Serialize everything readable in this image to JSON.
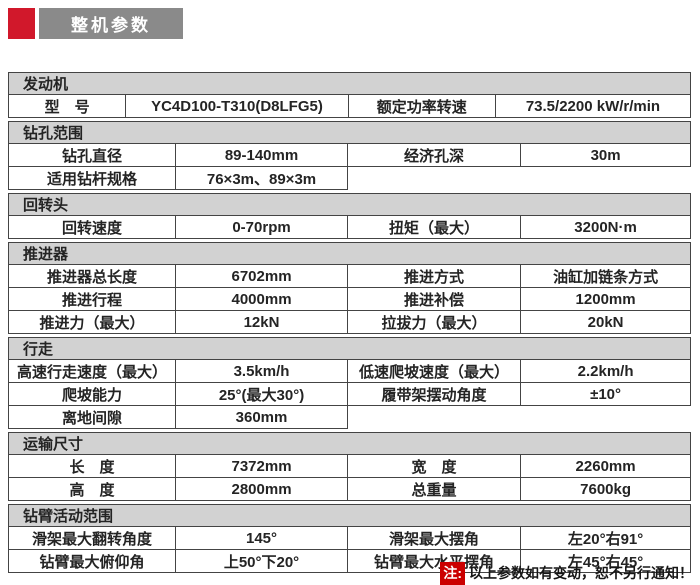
{
  "title": "整机参数",
  "colors": {
    "brand_red": "#d1182b",
    "title_bar_gray": "#8a8a8a",
    "section_header_gray": "#d2d2d2",
    "border": "#444444",
    "note_red": "#cb0000"
  },
  "sections": [
    {
      "name": "发动机",
      "layout": "engine",
      "rows": [
        [
          "型　号",
          "YC4D100-T310(D8LFG5)",
          "额定功率转速",
          "73.5/2200 kW/r/min"
        ]
      ]
    },
    {
      "name": "钻孔范围",
      "layout": "standard",
      "rows": [
        [
          "钻孔直径",
          "89-140mm",
          "经济孔深",
          "30m"
        ],
        [
          "适用钻杆规格",
          "76×3m、89×3m",
          "",
          ""
        ]
      ]
    },
    {
      "name": "回转头",
      "layout": "standard",
      "rows": [
        [
          "回转速度",
          "0-70rpm",
          "扭矩（最大）",
          "3200N·m"
        ]
      ]
    },
    {
      "name": "推进器",
      "layout": "standard",
      "rows": [
        [
          "推进器总长度",
          "6702mm",
          "推进方式",
          "油缸加链条方式"
        ],
        [
          "推进行程",
          "4000mm",
          "推进补偿",
          "1200mm"
        ],
        [
          "推进力（最大）",
          "12kN",
          "拉拔力（最大）",
          "20kN"
        ]
      ]
    },
    {
      "name": "行走",
      "layout": "standard",
      "rows": [
        [
          "高速行走速度（最大）",
          "3.5km/h",
          "低速爬坡速度（最大）",
          "2.2km/h"
        ],
        [
          "爬坡能力",
          "25°(最大30°)",
          "履带架摆动角度",
          "±10°"
        ],
        [
          "离地间隙",
          "360mm",
          "",
          ""
        ]
      ]
    },
    {
      "name": "运输尺寸",
      "layout": "standard",
      "rows": [
        [
          "长　度",
          "7372mm",
          "宽　度",
          "2260mm"
        ],
        [
          "高　度",
          "2800mm",
          "总重量",
          "7600kg"
        ]
      ]
    },
    {
      "name": "钻臂活动范围",
      "layout": "standard",
      "rows": [
        [
          "滑架最大翻转角度",
          "145°",
          "滑架最大摆角",
          "左20°右91°"
        ],
        [
          "钻臂最大俯仰角",
          "上50°下20°",
          "钻臂最大水平摆角",
          "左45°右45°"
        ]
      ]
    }
  ],
  "note": {
    "tag": "注:",
    "text": "以上参数如有变动，恕不另行通知！"
  }
}
